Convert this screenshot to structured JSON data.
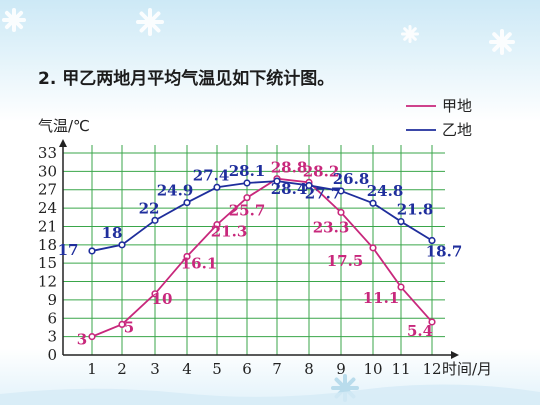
{
  "question": "2. 甲乙两地月平均气温见如下统计图。",
  "chart_data": {
    "type": "line",
    "title": "",
    "ylabel": "气温/℃",
    "xlabel": "时间/月",
    "ylim": [
      0,
      33
    ],
    "yticks": [
      0,
      3,
      6,
      9,
      12,
      15,
      18,
      21,
      24,
      27,
      30,
      33
    ],
    "categories": [
      1,
      2,
      3,
      4,
      5,
      6,
      7,
      8,
      9,
      10,
      11,
      12
    ],
    "series": [
      {
        "name": "甲地",
        "color": "#c8287c",
        "values": [
          3,
          5,
          10,
          16.1,
          21.3,
          25.7,
          28.8,
          28.2,
          23.3,
          17.5,
          11.1,
          5.4
        ]
      },
      {
        "name": "乙地",
        "color": "#1f2e9c",
        "values": [
          17,
          18,
          22,
          24.9,
          27.4,
          28.1,
          28.4,
          27.7,
          26.8,
          24.8,
          21.8,
          18.7
        ]
      }
    ],
    "grid": true,
    "legend_position": "top-right"
  }
}
